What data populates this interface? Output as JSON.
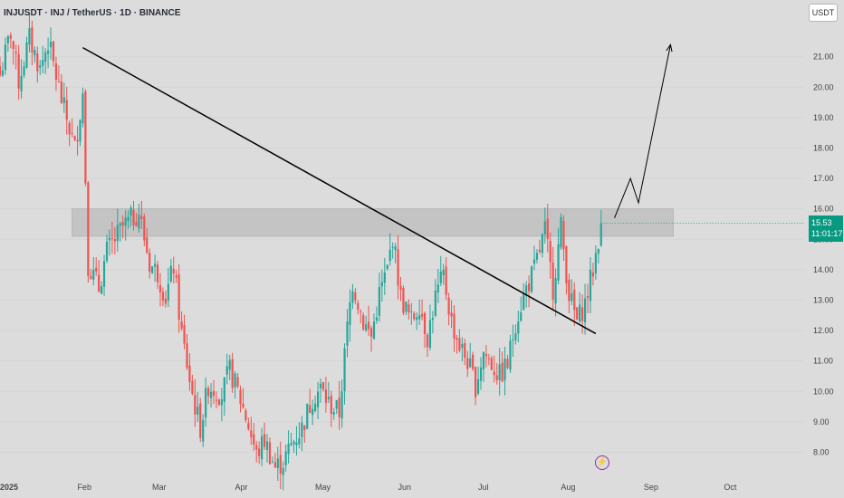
{
  "header": {
    "title": "INJUSDT · INJ / TetherUS · 1D · BINANCE"
  },
  "currency_label": "USDT",
  "price_badge": {
    "price": "15.53",
    "countdown": "11:01:17"
  },
  "icons": {
    "alert": "lightning-bolt-icon"
  },
  "colors": {
    "background": "#dcdcdc",
    "up": "#26a69a",
    "down": "#ef5350",
    "zone": "#c4c4c4",
    "annotation": "#000000",
    "badge": "#089981"
  },
  "chart_data": {
    "type": "candlestick",
    "symbol": "INJUSDT",
    "timeframe": "1D",
    "exchange": "BINANCE",
    "ylim": [
      7.3,
      22.4
    ],
    "y_ticks": [
      "8.00",
      "9.00",
      "10.00",
      "11.00",
      "12.00",
      "13.00",
      "14.00",
      "15.00",
      "16.00",
      "17.00",
      "18.00",
      "19.00",
      "20.00",
      "21.00"
    ],
    "x_ticks": [
      "2025",
      "Feb",
      "Mar",
      "Apr",
      "May",
      "Jun",
      "Jul",
      "Aug",
      "Sep",
      "Oct"
    ],
    "x_tick_dates": [
      "2025-01-01",
      "2025-02-01",
      "2025-03-01",
      "2025-04-01",
      "2025-05-01",
      "2025-06-01",
      "2025-07-01",
      "2025-08-01",
      "2025-09-01",
      "2025-10-01"
    ],
    "close_path": [
      [
        "2025-01-01",
        20.4
      ],
      [
        "2025-01-05",
        21.8
      ],
      [
        "2025-01-08",
        20.2
      ],
      [
        "2025-01-12",
        21.6
      ],
      [
        "2025-01-16",
        20.6
      ],
      [
        "2025-01-19",
        21.5
      ],
      [
        "2025-01-24",
        19.6
      ],
      [
        "2025-01-29",
        18.0
      ],
      [
        "2025-02-01",
        19.8
      ],
      [
        "2025-02-03",
        14.2
      ],
      [
        "2025-02-07",
        13.4
      ],
      [
        "2025-02-10",
        14.6
      ],
      [
        "2025-02-16",
        15.4
      ],
      [
        "2025-02-22",
        15.9
      ],
      [
        "2025-02-26",
        14.2
      ],
      [
        "2025-03-01",
        13.9
      ],
      [
        "2025-03-04",
        13.1
      ],
      [
        "2025-03-07",
        14.1
      ],
      [
        "2025-03-10",
        11.9
      ],
      [
        "2025-03-14",
        9.9
      ],
      [
        "2025-03-17",
        8.8
      ],
      [
        "2025-03-20",
        10.2
      ],
      [
        "2025-03-25",
        9.9
      ],
      [
        "2025-03-28",
        10.7
      ],
      [
        "2025-03-31",
        10.0
      ],
      [
        "2025-04-04",
        8.9
      ],
      [
        "2025-04-07",
        7.9
      ],
      [
        "2025-04-10",
        8.4
      ],
      [
        "2025-04-14",
        7.5
      ],
      [
        "2025-04-17",
        7.7
      ],
      [
        "2025-04-21",
        8.4
      ],
      [
        "2025-04-24",
        8.8
      ],
      [
        "2025-04-28",
        9.8
      ],
      [
        "2025-05-01",
        10.1
      ],
      [
        "2025-05-04",
        9.6
      ],
      [
        "2025-05-08",
        9.3
      ],
      [
        "2025-05-11",
        12.1
      ],
      [
        "2025-05-13",
        13.6
      ],
      [
        "2025-05-17",
        12.3
      ],
      [
        "2025-05-20",
        11.8
      ],
      [
        "2025-05-23",
        13.2
      ],
      [
        "2025-05-26",
        14.0
      ],
      [
        "2025-05-28",
        15.1
      ],
      [
        "2025-05-31",
        13.1
      ],
      [
        "2025-06-04",
        12.3
      ],
      [
        "2025-06-07",
        12.9
      ],
      [
        "2025-06-10",
        11.8
      ],
      [
        "2025-06-13",
        13.1
      ],
      [
        "2025-06-16",
        13.8
      ],
      [
        "2025-06-19",
        12.3
      ],
      [
        "2025-06-22",
        11.5
      ],
      [
        "2025-06-25",
        11.0
      ],
      [
        "2025-06-28",
        10.2
      ],
      [
        "2025-07-01",
        11.3
      ],
      [
        "2025-07-04",
        10.9
      ],
      [
        "2025-07-07",
        10.5
      ],
      [
        "2025-07-10",
        10.9
      ],
      [
        "2025-07-13",
        12.3
      ],
      [
        "2025-07-17",
        13.4
      ],
      [
        "2025-07-20",
        14.0
      ],
      [
        "2025-07-24",
        15.3
      ],
      [
        "2025-07-27",
        13.4
      ],
      [
        "2025-07-30",
        15.4
      ],
      [
        "2025-08-02",
        13.2
      ],
      [
        "2025-08-05",
        12.3
      ],
      [
        "2025-08-08",
        12.9
      ],
      [
        "2025-08-11",
        14.0
      ],
      [
        "2025-08-14",
        15.53
      ]
    ],
    "current_price": 15.53,
    "zone": {
      "from": 15.1,
      "to": 16.0,
      "start": "2025-01-28",
      "end": "2025-09-10"
    },
    "trendline": {
      "start": [
        "2025-02-01",
        21.3
      ],
      "end": [
        "2025-08-12",
        11.9
      ]
    },
    "projection": [
      [
        "2025-08-19",
        15.7
      ],
      [
        "2025-08-25",
        17.0
      ],
      [
        "2025-08-28",
        16.2
      ],
      [
        "2025-09-09",
        21.4
      ]
    ]
  }
}
